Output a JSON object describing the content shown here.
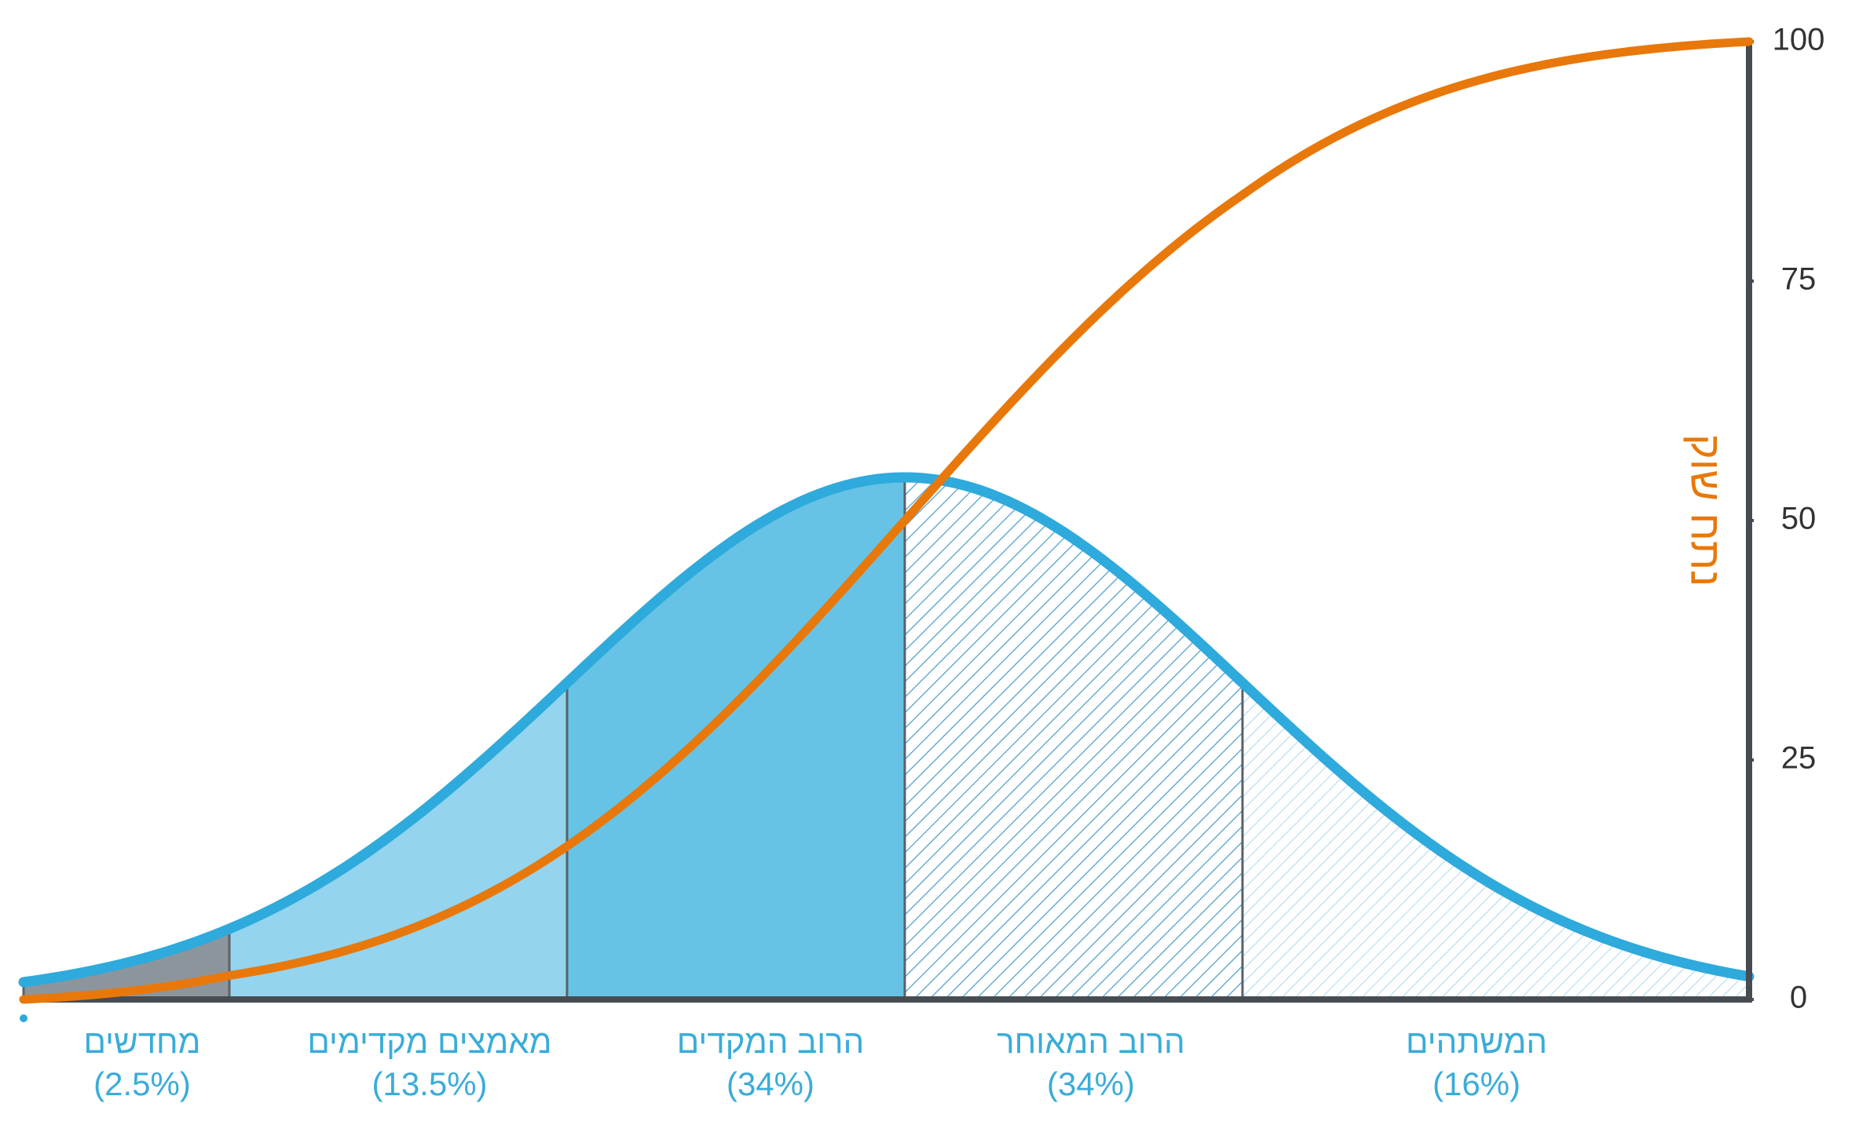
{
  "chart_data": {
    "type": "adoption",
    "categories": [
      "מחדשים",
      "מאמצים מקדימים",
      "הרוב המקדים",
      "הרוב המאוחר",
      "המשתהים"
    ],
    "values": [
      2.5,
      13.5,
      34,
      34,
      16
    ],
    "value_labels": [
      "(2.5%)",
      "(13.5%)",
      "(34%)",
      "(34%)",
      "(16%)"
    ],
    "colors": [
      "#8d959c",
      "#94d4ee",
      "#67c3e5",
      "#4a9fcc",
      "#8fcbe6"
    ],
    "curve_color": "#2eaadc",
    "line_color": "#e8780a",
    "ylabel": "נתח שוק",
    "ylim": [
      0,
      100
    ],
    "yticks": [
      0,
      25,
      50,
      75,
      100
    ]
  }
}
